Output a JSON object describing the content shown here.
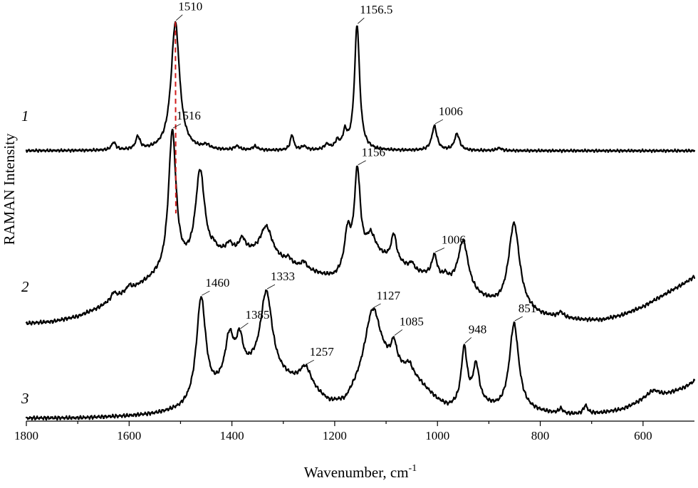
{
  "chart_data": {
    "type": "line",
    "title": "",
    "xlabel": "Wavenumber, cm",
    "xlabel_superscript": "-1",
    "ylabel": "RAMAN Intensity",
    "xlim": [
      1800,
      500
    ],
    "x_reversed": true,
    "y_ticks_shown": false,
    "grid": false,
    "x_ticks": [
      1800,
      1600,
      1400,
      1200,
      1000,
      800,
      600
    ],
    "x_tick_labels": [
      "1800",
      "1600",
      "1400",
      "1200",
      "1000",
      "800",
      "600"
    ],
    "series": [
      {
        "label": "1",
        "color": "#000000",
        "baseline": [
          [
            1800,
            0.0
          ],
          [
            1700,
            0.0
          ],
          [
            1600,
            0.0
          ],
          [
            1500,
            0.0
          ],
          [
            1400,
            0.0
          ],
          [
            1300,
            0.0
          ],
          [
            1200,
            0.0
          ],
          [
            1100,
            0.0
          ],
          [
            1000,
            0.0
          ],
          [
            900,
            0.0
          ],
          [
            800,
            0.0
          ],
          [
            700,
            0.0
          ],
          [
            600,
            0.0
          ],
          [
            500,
            0.0
          ]
        ],
        "peaks": [
          {
            "x": 1630,
            "height": 0.06,
            "width": 5
          },
          {
            "x": 1583,
            "height": 0.1,
            "width": 5
          },
          {
            "x": 1510,
            "height": 1.0,
            "width": 10
          },
          {
            "x": 1450,
            "height": 0.03,
            "width": 8
          },
          {
            "x": 1390,
            "height": 0.03,
            "width": 6
          },
          {
            "x": 1355,
            "height": 0.03,
            "width": 6
          },
          {
            "x": 1283,
            "height": 0.12,
            "width": 4
          },
          {
            "x": 1260,
            "height": 0.03,
            "width": 6
          },
          {
            "x": 1215,
            "height": 0.04,
            "width": 6
          },
          {
            "x": 1195,
            "height": 0.06,
            "width": 5
          },
          {
            "x": 1180,
            "height": 0.12,
            "width": 5
          },
          {
            "x": 1156.5,
            "height": 0.98,
            "width": 6
          },
          {
            "x": 1006,
            "height": 0.19,
            "width": 6
          },
          {
            "x": 962,
            "height": 0.13,
            "width": 6
          },
          {
            "x": 880,
            "height": 0.02,
            "width": 6
          }
        ],
        "annotations": [
          {
            "text": "1510",
            "x": 1510
          },
          {
            "text": "1156.5",
            "x": 1156.5
          },
          {
            "text": "1006",
            "x": 1006
          }
        ]
      },
      {
        "label": "2",
        "color": "#000000",
        "baseline": [
          [
            1800,
            0.0
          ],
          [
            1750,
            0.01
          ],
          [
            1700,
            0.04
          ],
          [
            1660,
            0.09
          ],
          [
            1620,
            0.16
          ],
          [
            1580,
            0.22
          ],
          [
            1550,
            0.26
          ],
          [
            1500,
            0.3
          ],
          [
            1460,
            0.35
          ],
          [
            1420,
            0.4
          ],
          [
            1380,
            0.42
          ],
          [
            1340,
            0.4
          ],
          [
            1300,
            0.36
          ],
          [
            1260,
            0.32
          ],
          [
            1220,
            0.28
          ],
          [
            1200,
            0.27
          ],
          [
            1180,
            0.3
          ],
          [
            1150,
            0.36
          ],
          [
            1120,
            0.4
          ],
          [
            1080,
            0.36
          ],
          [
            1040,
            0.3
          ],
          [
            1000,
            0.26
          ],
          [
            960,
            0.2
          ],
          [
            920,
            0.14
          ],
          [
            880,
            0.09
          ],
          [
            840,
            0.07
          ],
          [
            800,
            0.04
          ],
          [
            760,
            0.03
          ],
          [
            720,
            0.02
          ],
          [
            680,
            0.02
          ],
          [
            640,
            0.05
          ],
          [
            600,
            0.1
          ],
          [
            560,
            0.17
          ],
          [
            520,
            0.24
          ],
          [
            500,
            0.28
          ]
        ],
        "peaks": [
          {
            "x": 1630,
            "height": 0.04,
            "width": 5
          },
          {
            "x": 1600,
            "height": 0.03,
            "width": 5
          },
          {
            "x": 1516,
            "height": 0.85,
            "width": 9
          },
          {
            "x": 1462,
            "height": 0.55,
            "width": 11
          },
          {
            "x": 1435,
            "height": 0.03,
            "width": 5
          },
          {
            "x": 1405,
            "height": 0.05,
            "width": 7
          },
          {
            "x": 1380,
            "height": 0.07,
            "width": 7
          },
          {
            "x": 1333,
            "height": 0.18,
            "width": 14
          },
          {
            "x": 1290,
            "height": 0.03,
            "width": 6
          },
          {
            "x": 1260,
            "height": 0.04,
            "width": 6
          },
          {
            "x": 1175,
            "height": 0.22,
            "width": 7
          },
          {
            "x": 1156,
            "height": 0.55,
            "width": 7
          },
          {
            "x": 1130,
            "height": 0.12,
            "width": 10
          },
          {
            "x": 1085,
            "height": 0.16,
            "width": 6
          },
          {
            "x": 1050,
            "height": 0.04,
            "width": 5
          },
          {
            "x": 1006,
            "height": 0.13,
            "width": 6
          },
          {
            "x": 985,
            "height": 0.03,
            "width": 5
          },
          {
            "x": 950,
            "height": 0.3,
            "width": 12
          },
          {
            "x": 851,
            "height": 0.52,
            "width": 13
          },
          {
            "x": 760,
            "height": 0.03,
            "width": 6
          }
        ],
        "annotations": [
          {
            "text": "1516",
            "x": 1516
          },
          {
            "text": "1156",
            "x": 1156
          },
          {
            "text": "1006",
            "x": 1006
          }
        ]
      },
      {
        "label": "3",
        "color": "#000000",
        "baseline": [
          [
            1800,
            0.0
          ],
          [
            1700,
            0.0
          ],
          [
            1600,
            0.01
          ],
          [
            1550,
            0.02
          ],
          [
            1500,
            0.04
          ],
          [
            1480,
            0.06
          ],
          [
            1440,
            0.12
          ],
          [
            1400,
            0.22
          ],
          [
            1360,
            0.26
          ],
          [
            1300,
            0.22
          ],
          [
            1250,
            0.16
          ],
          [
            1210,
            0.08
          ],
          [
            1180,
            0.08
          ],
          [
            1150,
            0.2
          ],
          [
            1120,
            0.32
          ],
          [
            1080,
            0.3
          ],
          [
            1040,
            0.22
          ],
          [
            1000,
            0.1
          ],
          [
            980,
            0.06
          ],
          [
            960,
            0.06
          ],
          [
            920,
            0.08
          ],
          [
            880,
            0.04
          ],
          [
            840,
            0.04
          ],
          [
            800,
            0.03
          ],
          [
            760,
            0.02
          ],
          [
            720,
            0.02
          ],
          [
            680,
            0.03
          ],
          [
            640,
            0.05
          ],
          [
            600,
            0.1
          ],
          [
            560,
            0.13
          ],
          [
            520,
            0.18
          ],
          [
            500,
            0.22
          ]
        ],
        "peaks": [
          {
            "x": 1460,
            "height": 0.62,
            "width": 11
          },
          {
            "x": 1405,
            "height": 0.25,
            "width": 10
          },
          {
            "x": 1385,
            "height": 0.2,
            "width": 8
          },
          {
            "x": 1333,
            "height": 0.5,
            "width": 14
          },
          {
            "x": 1257,
            "height": 0.12,
            "width": 14
          },
          {
            "x": 1127,
            "height": 0.35,
            "width": 18
          },
          {
            "x": 1085,
            "height": 0.12,
            "width": 6
          },
          {
            "x": 1055,
            "height": 0.06,
            "width": 8
          },
          {
            "x": 948,
            "height": 0.34,
            "width": 7
          },
          {
            "x": 925,
            "height": 0.22,
            "width": 7
          },
          {
            "x": 851,
            "height": 0.52,
            "width": 11
          },
          {
            "x": 760,
            "height": 0.03,
            "width": 5
          },
          {
            "x": 712,
            "height": 0.05,
            "width": 5
          },
          {
            "x": 580,
            "height": 0.05,
            "width": 16
          }
        ],
        "annotations": [
          {
            "text": "1460",
            "x": 1460
          },
          {
            "text": "1385",
            "x": 1385
          },
          {
            "text": "1333",
            "x": 1333
          },
          {
            "text": "1257",
            "x": 1257
          },
          {
            "text": "1127",
            "x": 1127
          },
          {
            "text": "1085",
            "x": 1085
          },
          {
            "text": "948",
            "x": 948
          },
          {
            "text": "851",
            "x": 851
          }
        ]
      }
    ],
    "reference_line": {
      "color": "#d11a1a",
      "style": "dashed",
      "x_top": 1510,
      "x_bottom": 1516
    }
  }
}
